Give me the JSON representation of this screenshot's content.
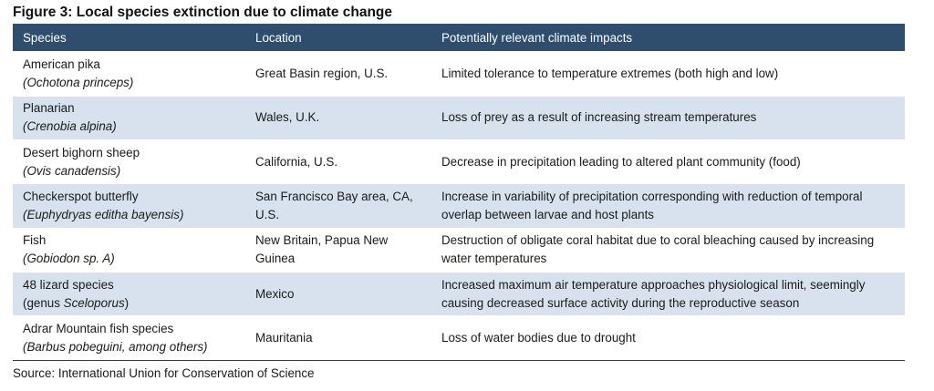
{
  "title": "Figure 3: Local species extinction due to climate change",
  "headers": [
    "Species",
    "Location",
    "Potentially relevant climate impacts"
  ],
  "rows": [
    {
      "species": "American pika",
      "scientific": "(Ochotona princeps)",
      "location": "Great Basin region, U.S.",
      "impact": "Limited tolerance to temperature extremes (both high and low)"
    },
    {
      "species": "Planarian",
      "scientific": "(Crenobia alpina)",
      "location": "Wales, U.K.",
      "impact": "Loss of prey as a result of increasing stream temperatures"
    },
    {
      "species": "Desert bighorn sheep",
      "scientific": "(Ovis canadensis)",
      "location": "California, U.S.",
      "impact": "Decrease in precipitation leading to altered plant community (food)"
    },
    {
      "species": "Checkerspot butterfly",
      "scientific": "(Euphydryas editha bayensis)",
      "location": "San Francisco Bay area, CA, U.S.",
      "impact": "Increase in variability of precipitation corresponding with reduction of temporal overlap between larvae and host plants"
    },
    {
      "species": "Fish",
      "scientific": "(Gobiodon sp. A)",
      "location": "New Britain, Papua New Guinea",
      "impact": "Destruction of obligate coral habitat due to coral bleaching caused by increasing water temperatures"
    },
    {
      "species": "48 lizard species",
      "scientific_prefix": "(genus ",
      "scientific_italic": "Sceloporus",
      "scientific_suffix": ")",
      "location": "Mexico",
      "impact": "Increased maximum air temperature approaches physiological limit, seemingly causing decreased surface activity during the reproductive season"
    },
    {
      "species": "Adrar Mountain fish species",
      "scientific": "(Barbus pobeguini, among others)",
      "location": "Mauritania",
      "impact": "Loss of water bodies due to drought"
    }
  ],
  "source": "Source: International Union for Conservation of Science",
  "colors": {
    "header_bg": "#2f4e6e",
    "shaded_row": "#d7e2ee"
  }
}
